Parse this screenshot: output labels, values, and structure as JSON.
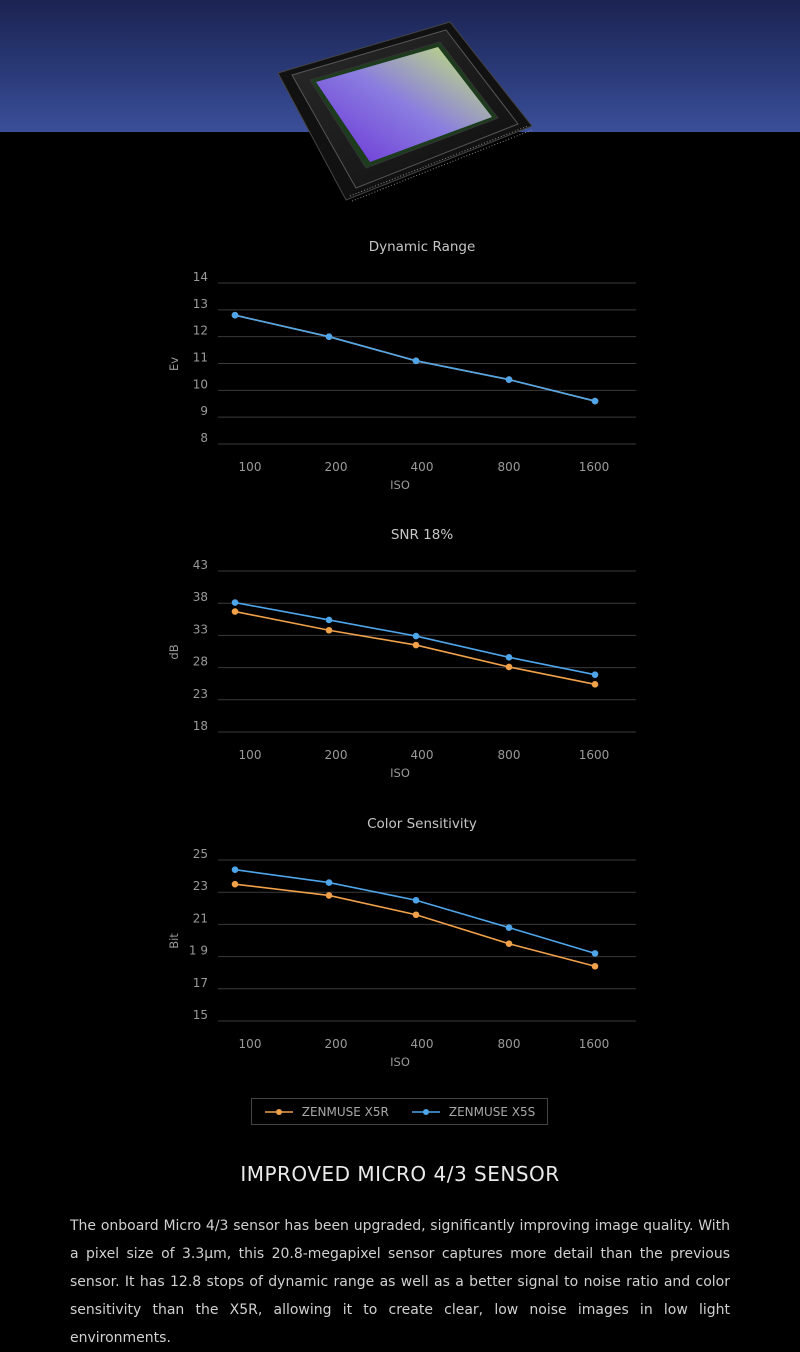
{
  "colors": {
    "x5r": "#f0a14a",
    "x5s": "#4fa5ea",
    "grid": "#3a3a3a",
    "tick": "#9a9a9a"
  },
  "chart_data": [
    {
      "id": "dr",
      "type": "line",
      "title": "Dynamic Range",
      "xlabel": "ISO",
      "ylabel": "Ev",
      "categories": [
        "100",
        "200",
        "400",
        "800",
        "1600"
      ],
      "yticks": [
        8,
        9,
        10,
        11,
        12,
        13,
        14
      ],
      "ylim": [
        8,
        14
      ],
      "series": [
        {
          "name": "ZENMUSE X5R",
          "key": "x5r",
          "values": [
            12.8,
            12.0,
            11.1,
            10.4,
            9.6
          ]
        },
        {
          "name": "ZENMUSE X5S",
          "key": "x5s",
          "values": [
            12.8,
            12.0,
            11.1,
            10.4,
            9.6
          ]
        }
      ]
    },
    {
      "id": "snr",
      "type": "line",
      "title": "SNR 18%",
      "xlabel": "ISO",
      "ylabel": "dB",
      "categories": [
        "100",
        "200",
        "400",
        "800",
        "1600"
      ],
      "yticks": [
        18,
        23,
        28,
        33,
        38,
        43
      ],
      "ylim": [
        18,
        43
      ],
      "series": [
        {
          "name": "ZENMUSE X5R",
          "key": "x5r",
          "values": [
            36.7,
            33.8,
            31.5,
            28.1,
            25.4
          ]
        },
        {
          "name": "ZENMUSE X5S",
          "key": "x5s",
          "values": [
            38.1,
            35.4,
            32.9,
            29.6,
            26.9
          ]
        }
      ]
    },
    {
      "id": "color",
      "type": "line",
      "title": "Color Sensitivity",
      "xlabel": "ISO",
      "ylabel": "Bit",
      "categories": [
        "100",
        "200",
        "400",
        "800",
        "1600"
      ],
      "yticks": [
        15,
        17,
        "1 9",
        21,
        23,
        25
      ],
      "ylim": [
        15,
        25
      ],
      "series": [
        {
          "name": "ZENMUSE X5R",
          "key": "x5r",
          "values": [
            23.5,
            22.8,
            21.6,
            19.8,
            18.4
          ]
        },
        {
          "name": "ZENMUSE X5S",
          "key": "x5s",
          "values": [
            24.4,
            23.6,
            22.5,
            20.8,
            19.2
          ]
        }
      ]
    }
  ],
  "legend": {
    "x5r": "ZENMUSE X5R",
    "x5s": "ZENMUSE X5S"
  },
  "section": {
    "title": "IMPROVED MICRO 4/3 SENSOR",
    "body": "The onboard Micro 4/3 sensor has been upgraded, significantly improving image quality. With a pixel size of 3.3μm, this 20.8-megapixel sensor captures more detail than the previous sensor. It has 12.8 stops of dynamic range as well as a better signal to noise ratio and color sensitivity than the X5R, allowing it to create clear, low noise images in low light environments."
  }
}
